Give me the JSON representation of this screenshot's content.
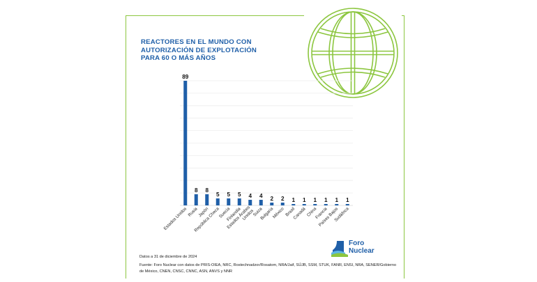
{
  "title_lines": [
    "REACTORES EN EL MUNDO CON",
    "AUTORIZACIÓN DE EXPLOTACIÓN",
    "PARA 60 O MÁS AÑOS"
  ],
  "footnote_date": "Datos a 31 de diciembre de 2024",
  "footnote_source": "Fuente: Foro Nuclear con datos de PRIS-OIEA, NRC, Rostechnadzor/Rosatom, NRA/Jaif, SÚJB, SSM, STUK, FANR, ENSI, NRA, SENER/Gobierno de México, CNEN, CNSC, CNNC, ASN, ANVS y NNR",
  "logo": {
    "line1": "Foro",
    "line2": "Nuclear"
  },
  "colors": {
    "bar": "#1f5fa8",
    "frame": "#8cc63f",
    "globe": "#8cc63f",
    "title": "#1f5fa8"
  },
  "icons": [
    "globe-icon",
    "foro-nuclear-logo-icon"
  ],
  "chart_data": {
    "type": "bar",
    "title": "REACTORES EN EL MUNDO CON AUTORIZACIÓN DE EXPLOTACIÓN PARA 60 O MÁS AÑOS",
    "xlabel": "",
    "ylabel": "",
    "categories": [
      "Estados Unidos",
      "Rusia",
      "Japón",
      "República Checa",
      "Suecia",
      "Finlandia",
      "Estados Árabes Unidos",
      "Suiza",
      "Bulgaria",
      "México",
      "Brasil",
      "Canadá",
      "China",
      "Francia",
      "Países Bajos",
      "Sudáfrica"
    ],
    "values": [
      89,
      8,
      8,
      5,
      5,
      5,
      4,
      4,
      2,
      2,
      1,
      1,
      1,
      1,
      1,
      1
    ],
    "ylim": [
      0,
      89
    ],
    "grid": true,
    "legend": "none"
  }
}
